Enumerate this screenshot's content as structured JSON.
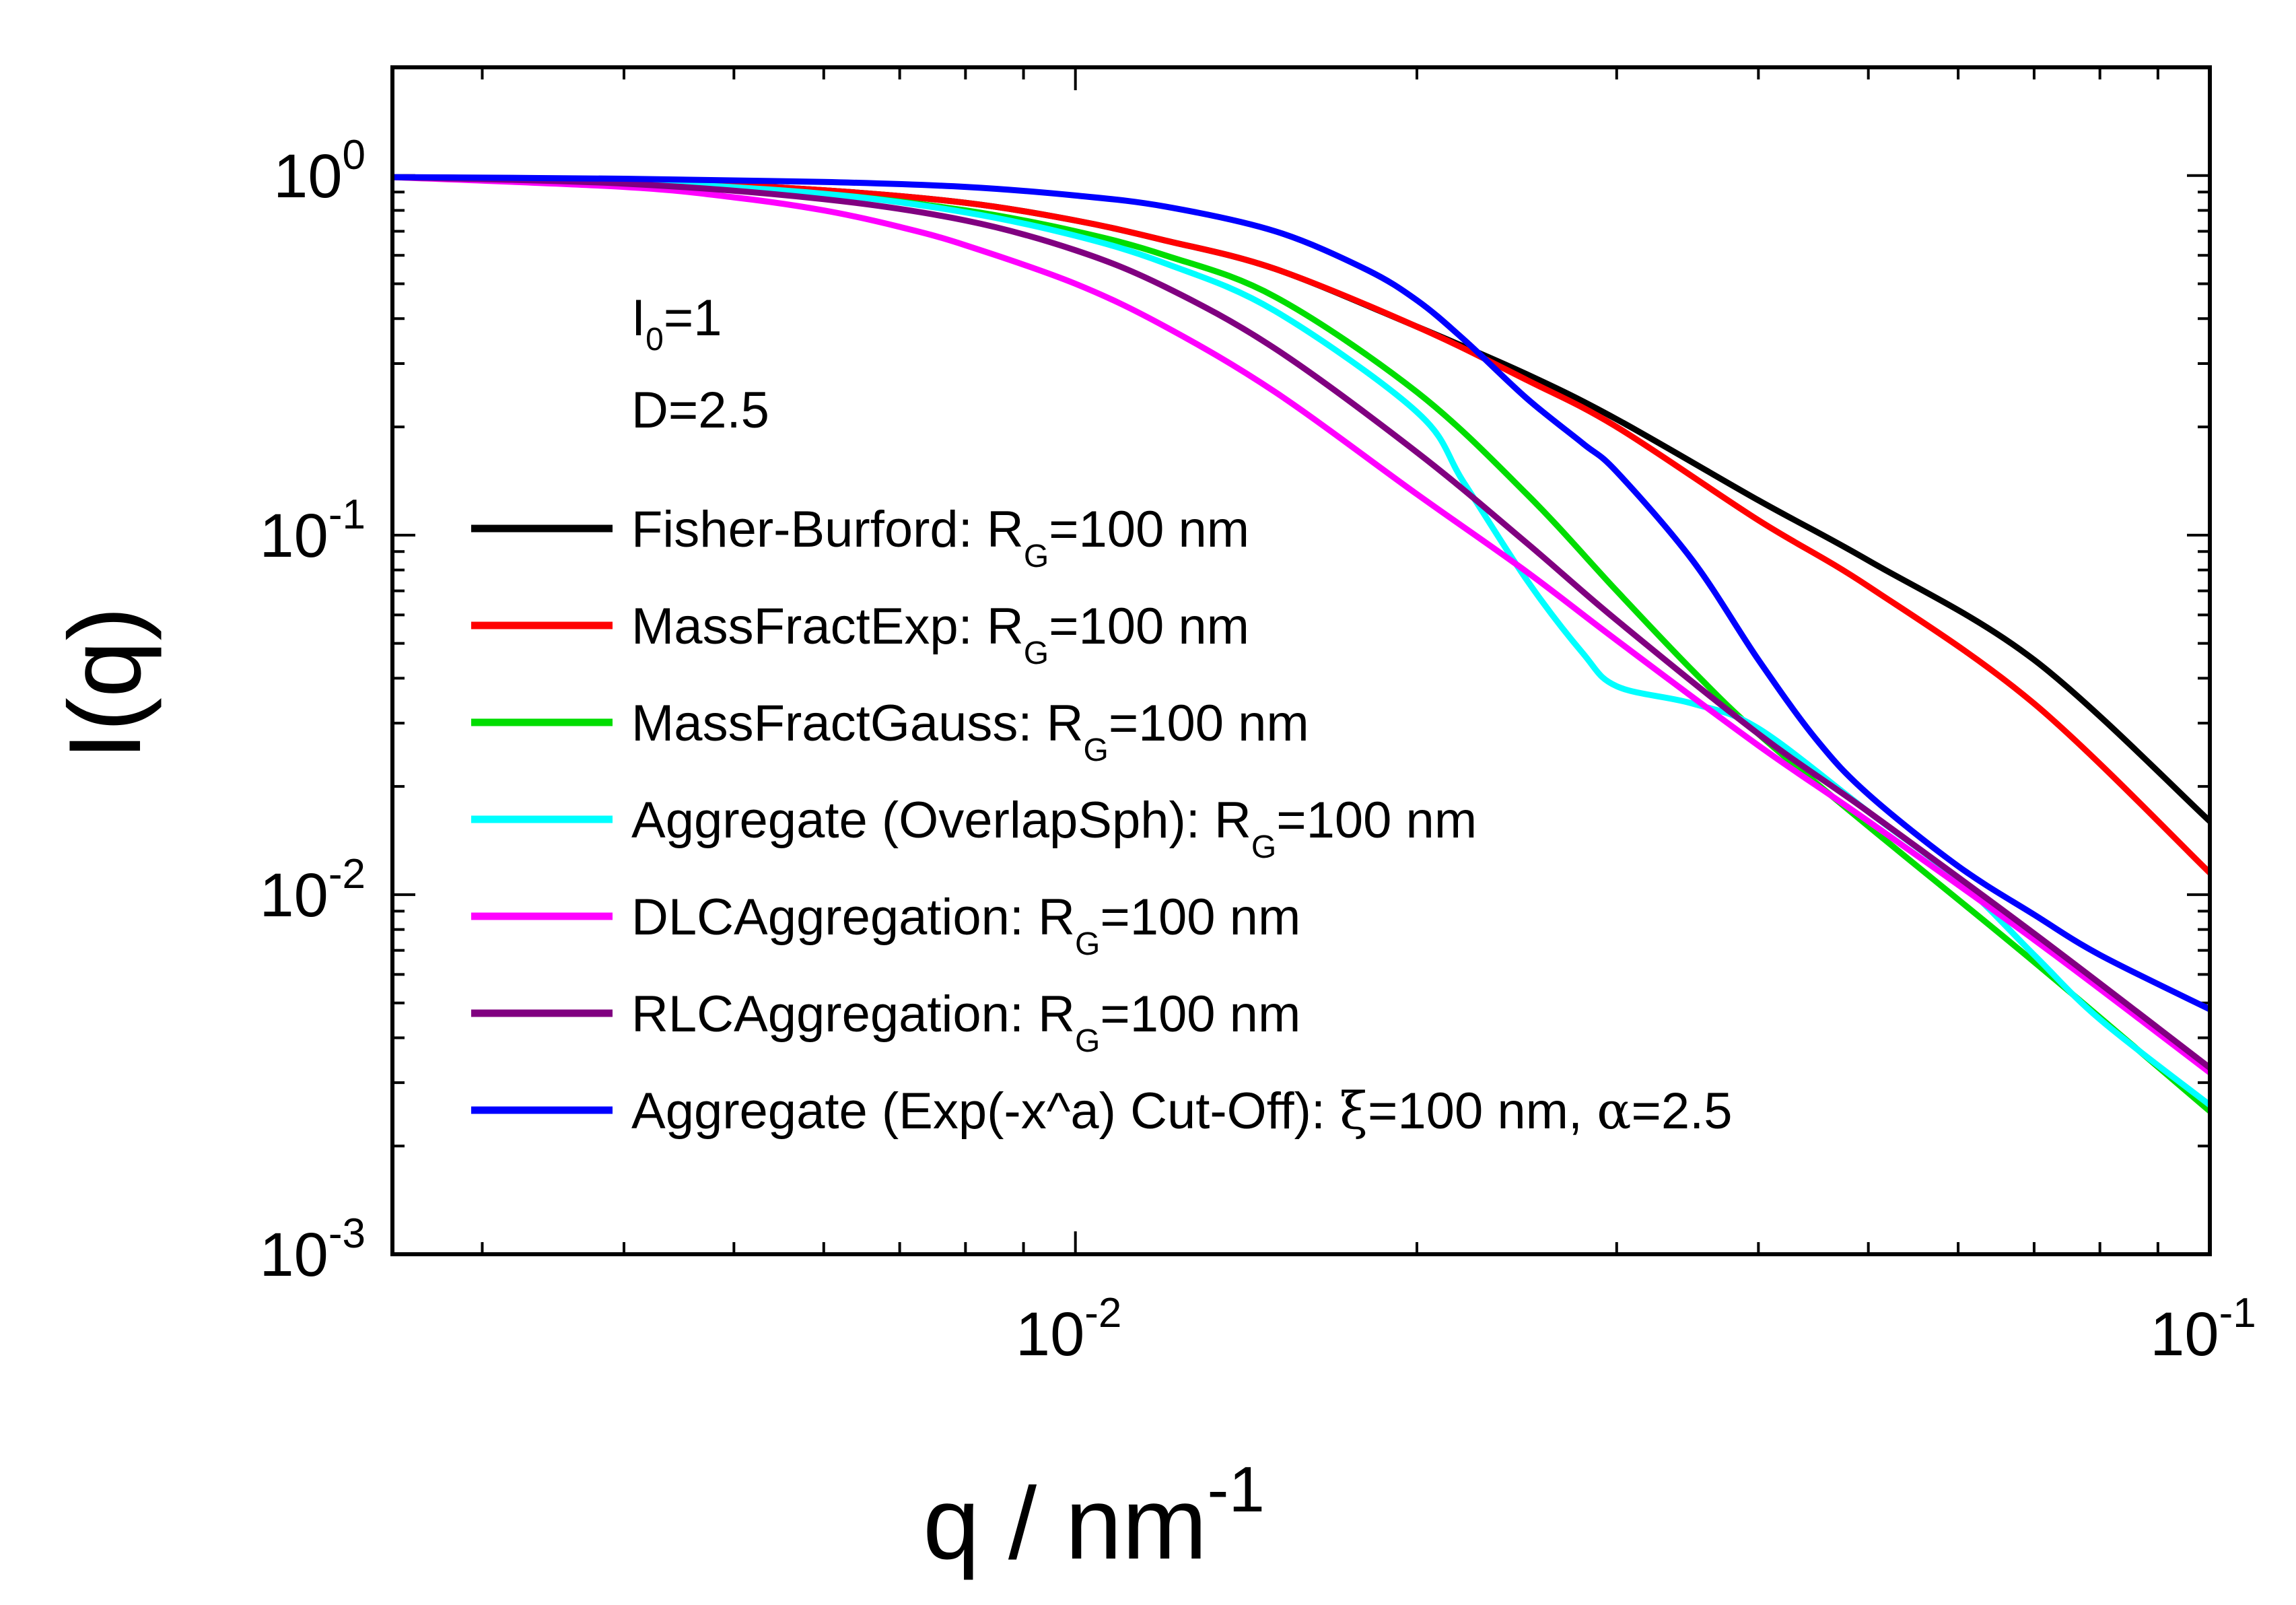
{
  "chart_data": {
    "type": "line",
    "xscale": "log",
    "yscale": "log",
    "xlim": [
      0.0025,
      0.1
    ],
    "ylim": [
      0.001,
      2
    ],
    "xlabel": {
      "base": "q / nm",
      "sup": "-1"
    },
    "ylabel": "I(q)",
    "x_ticks": [
      {
        "value": 0.01,
        "base": "10",
        "exp": "-2"
      },
      {
        "value": 0.1,
        "base": "10",
        "exp": "-1"
      }
    ],
    "y_ticks": [
      {
        "value": 1,
        "base": "10",
        "exp": "0"
      },
      {
        "value": 0.1,
        "base": "10",
        "exp": "-1"
      },
      {
        "value": 0.01,
        "base": "10",
        "exp": "-2"
      },
      {
        "value": 0.001,
        "base": "10",
        "exp": "-3"
      }
    ],
    "annotations": [
      {
        "main": "I",
        "sub": "0",
        "rest": "=1"
      },
      {
        "main": "D=2.5"
      }
    ],
    "legend_position": "left",
    "series": [
      {
        "name": {
          "pre": "Fisher-Burford: R",
          "sub": "G",
          "post": "=100 nm"
        },
        "color": "#000000",
        "x": [
          0.0025,
          0.004,
          0.006,
          0.008,
          0.01,
          0.012,
          0.015,
          0.02,
          0.025,
          0.03,
          0.04,
          0.05,
          0.07,
          0.1
        ],
        "y": [
          0.99,
          0.97,
          0.91,
          0.84,
          0.75,
          0.66,
          0.55,
          0.38,
          0.28,
          0.21,
          0.125,
          0.085,
          0.045,
          0.016
        ]
      },
      {
        "name": {
          "pre": "MassFractExp: R",
          "sub": "G",
          "post": "=100 nm"
        },
        "color": "#ff0000",
        "x": [
          0.0025,
          0.004,
          0.006,
          0.008,
          0.01,
          0.012,
          0.015,
          0.02,
          0.025,
          0.03,
          0.04,
          0.05,
          0.07,
          0.1
        ],
        "y": [
          0.99,
          0.97,
          0.91,
          0.84,
          0.75,
          0.66,
          0.55,
          0.38,
          0.27,
          0.2,
          0.11,
          0.072,
          0.034,
          0.0115
        ]
      },
      {
        "name": {
          "pre": "MassFractGauss: R",
          "sub": "G",
          "post": "=100 nm"
        },
        "color": "#00dd00",
        "x": [
          0.0025,
          0.004,
          0.006,
          0.008,
          0.01,
          0.012,
          0.015,
          0.02,
          0.025,
          0.03,
          0.035,
          0.04,
          0.05,
          0.07,
          0.1
        ],
        "y": [
          0.99,
          0.96,
          0.89,
          0.8,
          0.7,
          0.6,
          0.46,
          0.25,
          0.13,
          0.07,
          0.042,
          0.028,
          0.0155,
          0.0065,
          0.0025
        ]
      },
      {
        "name": {
          "pre": "Aggregate (OverlapSph): R",
          "sub": "G",
          "post": "=100 nm"
        },
        "color": "#00ffff",
        "x": [
          0.0025,
          0.004,
          0.006,
          0.008,
          0.01,
          0.012,
          0.015,
          0.02,
          0.022,
          0.025,
          0.028,
          0.03,
          0.035,
          0.04,
          0.05,
          0.06,
          0.07,
          0.08,
          0.1
        ],
        "y": [
          0.99,
          0.96,
          0.89,
          0.79,
          0.68,
          0.57,
          0.42,
          0.22,
          0.14,
          0.075,
          0.047,
          0.038,
          0.034,
          0.029,
          0.017,
          0.011,
          0.0068,
          0.0045,
          0.0026
        ]
      },
      {
        "name": {
          "pre": "DLCAggregation: R",
          "sub": "G",
          "post": "=100 nm"
        },
        "color": "#ff00ff",
        "x": [
          0.0025,
          0.004,
          0.005,
          0.006,
          0.007,
          0.008,
          0.01,
          0.012,
          0.015,
          0.02,
          0.025,
          0.03,
          0.04,
          0.05,
          0.07,
          0.1
        ],
        "y": [
          0.99,
          0.93,
          0.87,
          0.8,
          0.72,
          0.64,
          0.5,
          0.38,
          0.25,
          0.13,
          0.079,
          0.051,
          0.026,
          0.016,
          0.0075,
          0.0032
        ]
      },
      {
        "name": {
          "pre": "RLCAggregation: R",
          "sub": "G",
          "post": "=100 nm"
        },
        "color": "#800080",
        "x": [
          0.0025,
          0.004,
          0.006,
          0.008,
          0.01,
          0.012,
          0.015,
          0.02,
          0.025,
          0.03,
          0.04,
          0.05,
          0.07,
          0.1
        ],
        "y": [
          0.99,
          0.95,
          0.86,
          0.75,
          0.62,
          0.49,
          0.33,
          0.17,
          0.095,
          0.058,
          0.028,
          0.017,
          0.0078,
          0.0033
        ]
      },
      {
        "name": {
          "pre": "Aggregate (Exp(-x^a) Cut-Off): ",
          "greek1": "ξ",
          "mid": "=100 nm, ",
          "greek2": "α",
          "post": "=2.5"
        },
        "color": "#0000ff",
        "x": [
          0.0025,
          0.004,
          0.006,
          0.008,
          0.01,
          0.012,
          0.015,
          0.018,
          0.02,
          0.022,
          0.025,
          0.028,
          0.03,
          0.035,
          0.04,
          0.045,
          0.05,
          0.06,
          0.07,
          0.08,
          0.1
        ],
        "y": [
          0.99,
          0.98,
          0.96,
          0.93,
          0.88,
          0.82,
          0.7,
          0.55,
          0.45,
          0.35,
          0.24,
          0.18,
          0.15,
          0.085,
          0.045,
          0.027,
          0.019,
          0.012,
          0.0088,
          0.0068,
          0.0048
        ]
      }
    ]
  }
}
